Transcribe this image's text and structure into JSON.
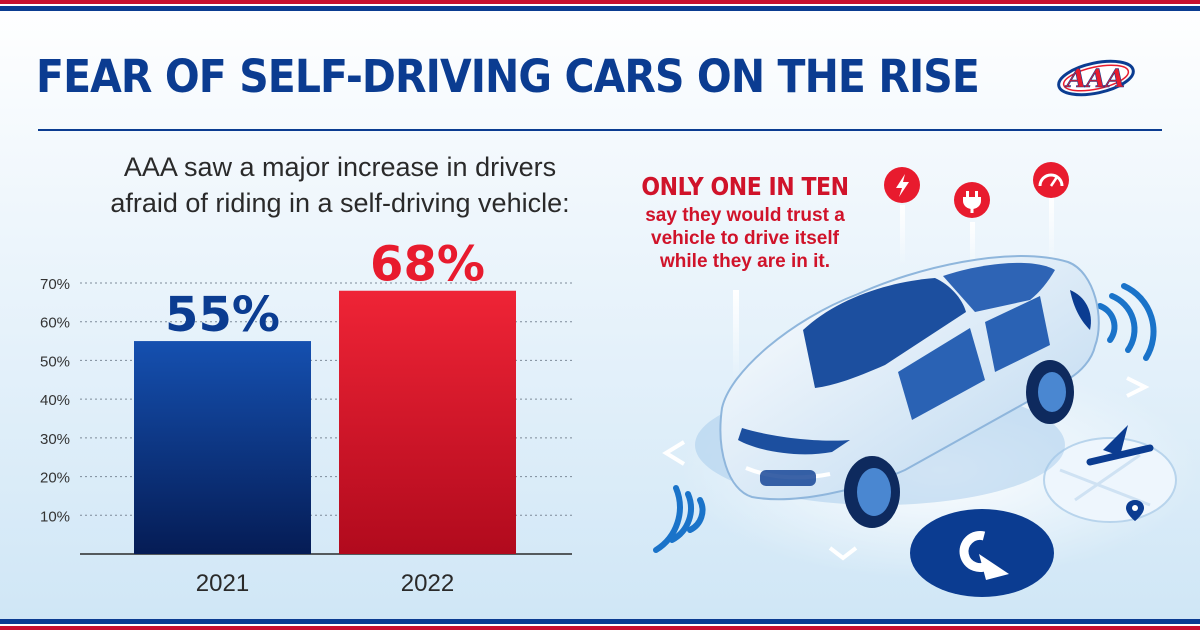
{
  "header": {
    "title": "FEAR OF SELF-DRIVING CARS ON THE RISE"
  },
  "brand": {
    "logo_text": "AAA",
    "primary": "#0b3c91",
    "accent": "#e81b2e"
  },
  "subtitle": {
    "line1": "AAA saw a major increase in drivers",
    "line2": "afraid of riding in a self-driving vehicle:"
  },
  "callout": {
    "headline": "ONLY ONE IN TEN",
    "body": [
      "say they would trust a",
      "vehicle to drive itself",
      "while they are in it."
    ]
  },
  "icons": [
    "lightning-icon",
    "plug-icon",
    "speedometer-icon",
    "location-pin-icon",
    "turn-arrow-icon"
  ],
  "chart_data": {
    "type": "bar",
    "title": "",
    "categories": [
      "2021",
      "2022"
    ],
    "values": [
      55,
      68
    ],
    "value_labels": [
      "55%",
      "68%"
    ],
    "colors": [
      "#0b3c91",
      "#e81b2e"
    ],
    "ylim": [
      0,
      70
    ],
    "yticks": [
      10,
      20,
      30,
      40,
      50,
      60,
      70
    ],
    "ytick_labels": [
      "10%",
      "20%",
      "30%",
      "40%",
      "50%",
      "60%",
      "70%"
    ],
    "grid": true,
    "xlabel": "",
    "ylabel": ""
  }
}
